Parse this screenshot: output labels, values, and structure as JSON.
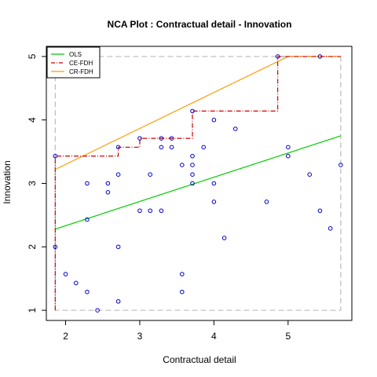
{
  "chart_data": {
    "type": "scatter",
    "title": "NCA Plot : Contractual detail - Innovation",
    "xlabel": "Contractual detail",
    "ylabel": "Innovation",
    "xlim": [
      1.74,
      5.86
    ],
    "ylim": [
      0.84,
      5.16
    ],
    "x_ticks": [
      2,
      3,
      4,
      5
    ],
    "y_ticks": [
      1,
      2,
      3,
      4,
      5
    ],
    "scope": {
      "xmin": 1.86,
      "xmax": 5.71,
      "ymin": 1.0,
      "ymax": 5.0
    },
    "legend_position": "top-left",
    "legend": [
      {
        "label": "OLS",
        "color": "#00cc00",
        "dash": "solid"
      },
      {
        "label": "CE-FDH",
        "color": "#cc0000",
        "dash": "dashdot"
      },
      {
        "label": "CR-FDH",
        "color": "#ff9900",
        "dash": "solid"
      }
    ],
    "points": [
      [
        1.86,
        2.0
      ],
      [
        1.86,
        3.43
      ],
      [
        2.0,
        1.57
      ],
      [
        2.14,
        1.43
      ],
      [
        2.29,
        3.0
      ],
      [
        2.29,
        2.43
      ],
      [
        2.29,
        1.29
      ],
      [
        2.43,
        1.0
      ],
      [
        2.57,
        3.0
      ],
      [
        2.57,
        2.86
      ],
      [
        2.71,
        3.57
      ],
      [
        2.71,
        3.14
      ],
      [
        2.71,
        2.0
      ],
      [
        2.71,
        1.14
      ],
      [
        3.0,
        3.71
      ],
      [
        3.0,
        2.57
      ],
      [
        3.14,
        3.14
      ],
      [
        3.14,
        2.57
      ],
      [
        3.29,
        3.71
      ],
      [
        3.29,
        3.57
      ],
      [
        3.29,
        2.57
      ],
      [
        3.43,
        3.71
      ],
      [
        3.43,
        3.57
      ],
      [
        3.57,
        3.29
      ],
      [
        3.57,
        1.57
      ],
      [
        3.57,
        1.29
      ],
      [
        3.71,
        4.14
      ],
      [
        3.71,
        3.43
      ],
      [
        3.71,
        3.29
      ],
      [
        3.71,
        3.14
      ],
      [
        3.71,
        3.0
      ],
      [
        3.86,
        3.57
      ],
      [
        4.0,
        4.0
      ],
      [
        4.0,
        3.0
      ],
      [
        4.0,
        2.71
      ],
      [
        4.14,
        2.14
      ],
      [
        4.29,
        3.86
      ],
      [
        4.71,
        2.71
      ],
      [
        4.86,
        5.0
      ],
      [
        5.0,
        3.57
      ],
      [
        5.0,
        3.43
      ],
      [
        5.29,
        3.14
      ],
      [
        5.43,
        5.0
      ],
      [
        5.43,
        2.57
      ],
      [
        5.57,
        2.29
      ],
      [
        5.71,
        3.29
      ]
    ],
    "ols_line": {
      "x": [
        1.86,
        5.71
      ],
      "y": [
        2.28,
        3.75
      ]
    },
    "cr_fdh_line": {
      "x": [
        1.86,
        5.0,
        5.71
      ],
      "y": [
        3.22,
        5.0,
        5.0
      ]
    },
    "ce_fdh_steps": {
      "x": [
        1.86,
        1.86,
        2.71,
        2.71,
        3.0,
        3.0,
        3.71,
        3.71,
        4.86,
        4.86,
        5.71
      ],
      "y": [
        1.0,
        3.43,
        3.43,
        3.57,
        3.57,
        3.71,
        3.71,
        4.14,
        4.14,
        5.0,
        5.0
      ]
    },
    "colors": {
      "points": "#0000cc",
      "scope": "#bbbbbb",
      "axis": "#000000"
    }
  }
}
